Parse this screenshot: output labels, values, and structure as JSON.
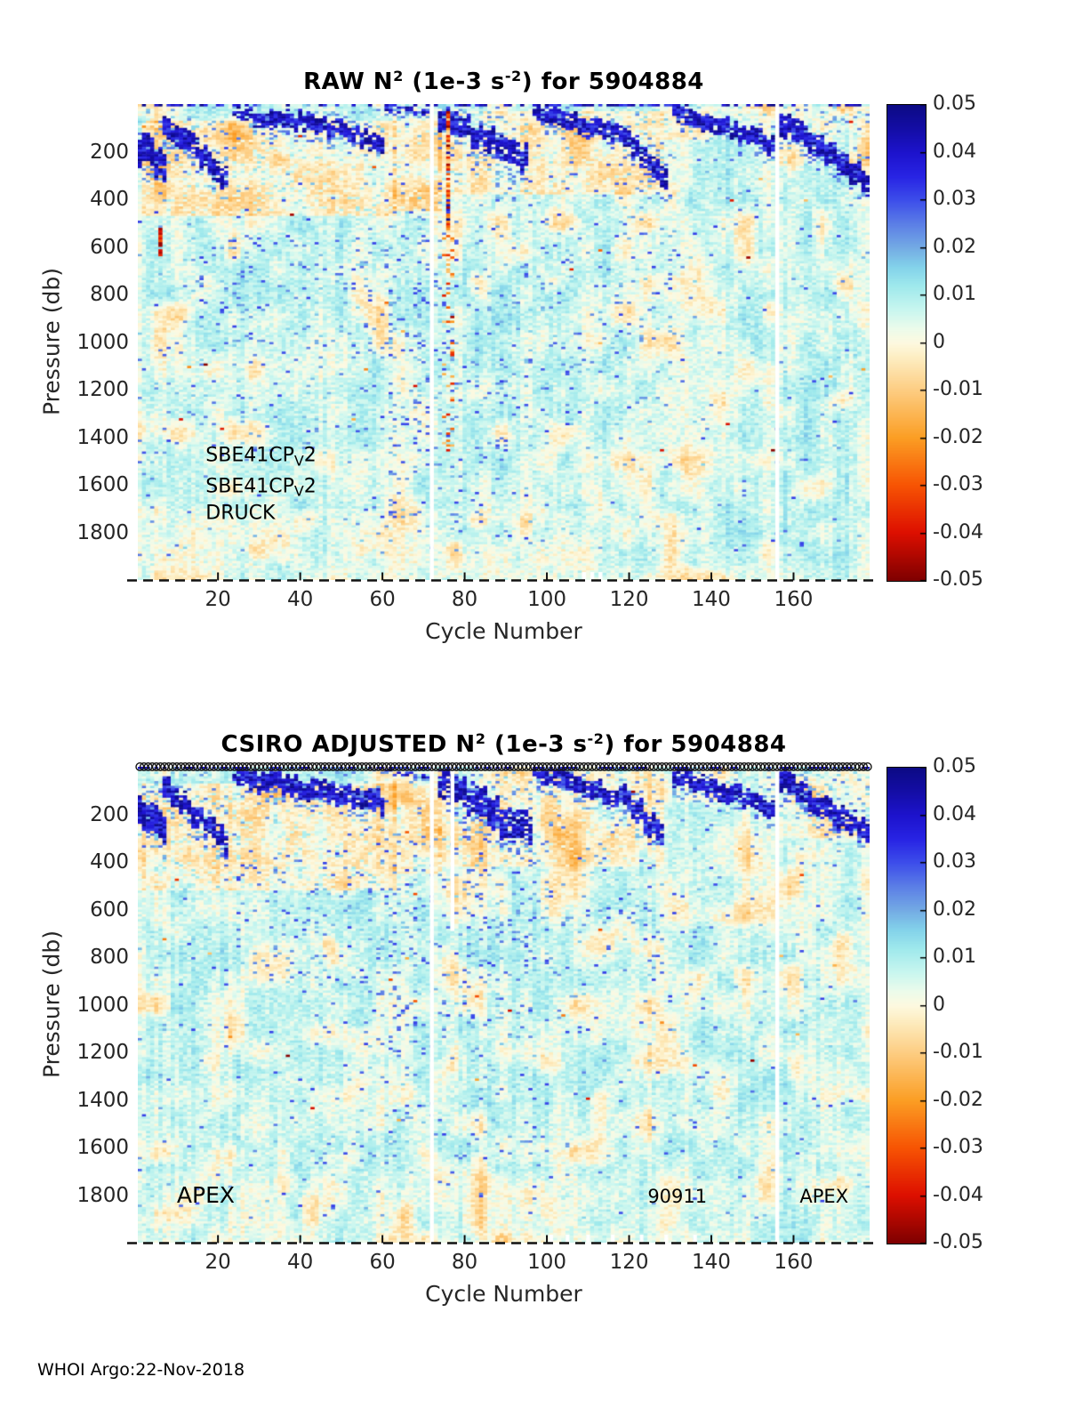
{
  "footer": {
    "credit": "WHOI Argo:22-Nov-2018"
  },
  "palette": {
    "axis_text": "#262626",
    "title_text": "#000000",
    "marker_stroke": "#141414",
    "colormap_stops": [
      {
        "v": -0.05,
        "c": "#7f0000"
      },
      {
        "v": -0.04,
        "c": "#dd0f00"
      },
      {
        "v": -0.03,
        "c": "#f75403"
      },
      {
        "v": -0.02,
        "c": "#fb9e24"
      },
      {
        "v": -0.01,
        "c": "#fdcd82"
      },
      {
        "v": -0.003,
        "c": "#fdeec3"
      },
      {
        "v": 0.0,
        "c": "#fdf9e0"
      },
      {
        "v": 0.003,
        "c": "#ecfbeb"
      },
      {
        "v": 0.007,
        "c": "#c8f6ef"
      },
      {
        "v": 0.012,
        "c": "#9fe9ec"
      },
      {
        "v": 0.016,
        "c": "#83d2ea"
      },
      {
        "v": 0.02,
        "c": "#74abe4"
      },
      {
        "v": 0.025,
        "c": "#5c7fe6"
      },
      {
        "v": 0.03,
        "c": "#3d4eea"
      },
      {
        "v": 0.035,
        "c": "#2824e4"
      },
      {
        "v": 0.04,
        "c": "#1d13cd"
      },
      {
        "v": 0.045,
        "c": "#140da6"
      },
      {
        "v": 0.05,
        "c": "#0c0a85"
      }
    ]
  },
  "chart_data": [
    {
      "id": "raw",
      "type": "heatmap",
      "title_segments": [
        {
          "t": "RAW N"
        },
        {
          "t": "2",
          "sup": true
        },
        {
          "t": " (1e-3 s"
        },
        {
          "t": "-2",
          "sup": true
        },
        {
          "t": ") for 5904884"
        }
      ],
      "xlabel": "Cycle Number",
      "ylabel": "Pressure (db)",
      "x_range": [
        1,
        178
      ],
      "y_range": [
        0,
        2000
      ],
      "x_ticks": [
        "20",
        "40",
        "60",
        "80",
        "100",
        "120",
        "140",
        "160"
      ],
      "y_ticks": [
        "200",
        "400",
        "600",
        "800",
        "1000",
        "1200",
        "1400",
        "1600",
        "1800"
      ],
      "colorbar_range": [
        -0.05,
        0.05
      ],
      "colorbar_ticks": [
        "0.05",
        "0.04",
        "0.03",
        "0.02",
        "0.01",
        "0",
        "-0.01",
        "-0.02",
        "-0.03",
        "-0.04",
        "-0.05"
      ],
      "annotations": [
        {
          "segments": [
            {
              "t": "SBE41CP"
            },
            {
              "t": "V",
              "sub": true
            },
            {
              "t": "2"
            }
          ],
          "cycle": 17,
          "pressure": 1480,
          "size": 22
        },
        {
          "segments": [
            {
              "t": "SBE41CP"
            },
            {
              "t": "V",
              "sub": true
            },
            {
              "t": "2"
            }
          ],
          "cycle": 17,
          "pressure": 1610,
          "size": 22
        },
        {
          "segments": [
            {
              "t": "DRUCK"
            }
          ],
          "cycle": 17,
          "pressure": 1725,
          "size": 22
        }
      ],
      "top_markers": false,
      "render": {
        "seed": 101,
        "surface_dark_top_prob": 0.4,
        "red_speck_prob": 0.0012,
        "gap_columns": [
          {
            "cycle": 72,
            "p0": 0,
            "p1": 2000
          },
          {
            "cycle": 156,
            "p0": 0,
            "p1": 2000
          }
        ],
        "bottom_notch_cycles": [
          109,
          111,
          113
        ],
        "cream_zones": [
          {
            "c0": 2,
            "c1": 63,
            "p0": 70,
            "p1": 470,
            "s": 1.0
          },
          {
            "c0": 63,
            "c1": 74,
            "p0": 20,
            "p1": 450,
            "s": 0.9
          },
          {
            "c0": 74,
            "c1": 128,
            "p0": 30,
            "p1": 380,
            "s": 0.85
          },
          {
            "c0": 128,
            "c1": 156,
            "p0": 15,
            "p1": 150,
            "s": 0.5
          },
          {
            "c0": 157,
            "c1": 178,
            "p0": 15,
            "p1": 260,
            "s": 0.7
          },
          {
            "c0": 1,
            "c1": 120,
            "p0": 1700,
            "p1": 2000,
            "s": 0.3
          }
        ],
        "band_segments": [
          {
            "c0": 1,
            "c1": 7,
            "p0": 190,
            "p1": 260,
            "th": 60,
            "density": 0.92
          },
          {
            "c0": 7,
            "c1": 22,
            "p0": 80,
            "p1": 310,
            "th": 45,
            "density": 0.85
          },
          {
            "c0": 24,
            "c1": 33,
            "p0": 25,
            "p1": 75,
            "th": 28,
            "density": 0.7
          },
          {
            "c0": 33,
            "c1": 60,
            "p0": 45,
            "p1": 155,
            "th": 34,
            "density": 0.82
          },
          {
            "c0": 61,
            "c1": 71,
            "p0": 12,
            "p1": 40,
            "th": 16,
            "density": 0.45
          },
          {
            "c0": 74,
            "c1": 86,
            "p0": 55,
            "p1": 150,
            "th": 45,
            "density": 0.85
          },
          {
            "c0": 86,
            "c1": 95,
            "p0": 150,
            "p1": 235,
            "th": 50,
            "density": 0.82
          },
          {
            "c0": 97,
            "c1": 119,
            "p0": 30,
            "p1": 140,
            "th": 36,
            "density": 0.82
          },
          {
            "c0": 119,
            "c1": 129,
            "p0": 140,
            "p1": 300,
            "th": 45,
            "density": 0.8
          },
          {
            "c0": 131,
            "c1": 155,
            "p0": 30,
            "p1": 170,
            "th": 34,
            "density": 0.82
          },
          {
            "c0": 157,
            "c1": 178,
            "p0": 80,
            "p1": 320,
            "th": 46,
            "density": 0.85
          }
        ],
        "speck_zones": [
          {
            "c0": 14,
            "c1": 62,
            "p0": 550,
            "p1": 1050,
            "prob": 0.05
          },
          {
            "c0": 14,
            "c1": 62,
            "p0": 1050,
            "p1": 1500,
            "prob": 0.025
          },
          {
            "c0": 62,
            "c1": 71,
            "p0": 450,
            "p1": 1750,
            "prob": 0.07
          },
          {
            "c0": 73,
            "c1": 84,
            "p0": 150,
            "p1": 1800,
            "prob": 0.045
          },
          {
            "c0": 84,
            "c1": 108,
            "p0": 250,
            "p1": 1450,
            "prob": 0.035
          },
          {
            "c0": 108,
            "c1": 130,
            "p0": 250,
            "p1": 1300,
            "prob": 0.02
          },
          {
            "c0": 1,
            "c1": 178,
            "p0": 80,
            "p1": 1900,
            "prob": 0.012
          }
        ],
        "color_anomalies": [
          {
            "kind": "streak",
            "cycle": 76,
            "p0": 30,
            "p1": 560
          },
          {
            "kind": "cluster",
            "cycle": 6,
            "p0": 520,
            "p1": 635
          },
          {
            "kind": "sprinkle",
            "c0": 75,
            "c1": 77,
            "p0": 560,
            "p1": 1500,
            "prob": 0.12
          }
        ]
      }
    },
    {
      "id": "csiro-adjusted",
      "type": "heatmap",
      "title_segments": [
        {
          "t": "CSIRO  ADJUSTED N"
        },
        {
          "t": "2",
          "sup": true
        },
        {
          "t": " (1e-3 s"
        },
        {
          "t": "-2",
          "sup": true
        },
        {
          "t": ") for 5904884"
        }
      ],
      "xlabel": "Cycle Number",
      "ylabel": "Pressure (db)",
      "x_range": [
        1,
        178
      ],
      "y_range": [
        0,
        2000
      ],
      "x_ticks": [
        "20",
        "40",
        "60",
        "80",
        "100",
        "120",
        "140",
        "160"
      ],
      "y_ticks": [
        "200",
        "400",
        "600",
        "800",
        "1000",
        "1200",
        "1400",
        "1600",
        "1800"
      ],
      "colorbar_range": [
        -0.05,
        0.05
      ],
      "colorbar_ticks": [
        "0.05",
        "0.04",
        "0.03",
        "0.02",
        "0.01",
        "0",
        "-0.01",
        "-0.02",
        "-0.03",
        "-0.04",
        "-0.05"
      ],
      "annotations": [
        {
          "segments": [
            {
              "t": "APEX"
            }
          ],
          "cycle": 10,
          "pressure": 1805,
          "size": 25
        },
        {
          "segments": [
            {
              "t": "90911"
            }
          ],
          "cycle": 124.5,
          "pressure": 1810,
          "size": 21
        },
        {
          "segments": [
            {
              "t": "APEX"
            }
          ],
          "cycle": 161.5,
          "pressure": 1810,
          "size": 21
        }
      ],
      "top_markers": true,
      "render": {
        "seed": 202,
        "surface_dark_top_prob": 0.45,
        "red_speck_prob": 0.0007,
        "gap_columns": [
          {
            "cycle": 72,
            "p0": 0,
            "p1": 2000
          },
          {
            "cycle": 77,
            "p0": 0,
            "p1": 690
          },
          {
            "cycle": 156,
            "p0": 0,
            "p1": 2000
          }
        ],
        "bottom_notch_cycles": [
          101,
          105,
          110,
          116,
          123,
          129,
          136
        ],
        "cream_zones": [
          {
            "c0": 2,
            "c1": 63,
            "p0": 70,
            "p1": 520,
            "s": 1.0
          },
          {
            "c0": 63,
            "c1": 74,
            "p0": 20,
            "p1": 450,
            "s": 0.85
          },
          {
            "c0": 74,
            "c1": 128,
            "p0": 25,
            "p1": 420,
            "s": 0.8
          },
          {
            "c0": 128,
            "c1": 156,
            "p0": 15,
            "p1": 150,
            "s": 0.45
          },
          {
            "c0": 157,
            "c1": 178,
            "p0": 15,
            "p1": 300,
            "s": 0.65
          },
          {
            "c0": 1,
            "c1": 120,
            "p0": 1700,
            "p1": 2000,
            "s": 0.25
          }
        ],
        "band_segments": [
          {
            "c0": 1,
            "c1": 7,
            "p0": 190,
            "p1": 260,
            "th": 60,
            "density": 0.92
          },
          {
            "c0": 7,
            "c1": 22,
            "p0": 80,
            "p1": 310,
            "th": 45,
            "density": 0.85
          },
          {
            "c0": 24,
            "c1": 60,
            "p0": 35,
            "p1": 150,
            "th": 40,
            "density": 0.85
          },
          {
            "c0": 61,
            "c1": 71,
            "p0": 12,
            "p1": 40,
            "th": 16,
            "density": 0.4
          },
          {
            "c0": 74,
            "c1": 96,
            "p0": 70,
            "p1": 280,
            "th": 62,
            "density": 0.8
          },
          {
            "c0": 97,
            "c1": 119,
            "p0": 25,
            "p1": 130,
            "th": 36,
            "density": 0.82
          },
          {
            "c0": 119,
            "c1": 128,
            "p0": 130,
            "p1": 280,
            "th": 45,
            "density": 0.8
          },
          {
            "c0": 131,
            "c1": 155,
            "p0": 35,
            "p1": 170,
            "th": 36,
            "density": 0.84
          },
          {
            "c0": 157,
            "c1": 178,
            "p0": 60,
            "p1": 280,
            "th": 44,
            "density": 0.85
          }
        ],
        "speck_zones": [
          {
            "c0": 55,
            "c1": 100,
            "p0": 250,
            "p1": 1100,
            "prob": 0.05
          },
          {
            "c0": 55,
            "c1": 100,
            "p0": 1100,
            "p1": 1650,
            "prob": 0.025
          },
          {
            "c0": 22,
            "c1": 55,
            "p0": 350,
            "p1": 950,
            "prob": 0.03
          },
          {
            "c0": 97,
            "c1": 128,
            "p0": 200,
            "p1": 900,
            "prob": 0.025
          },
          {
            "c0": 1,
            "c1": 178,
            "p0": 80,
            "p1": 1900,
            "prob": 0.012
          }
        ],
        "color_anomalies": []
      }
    }
  ]
}
